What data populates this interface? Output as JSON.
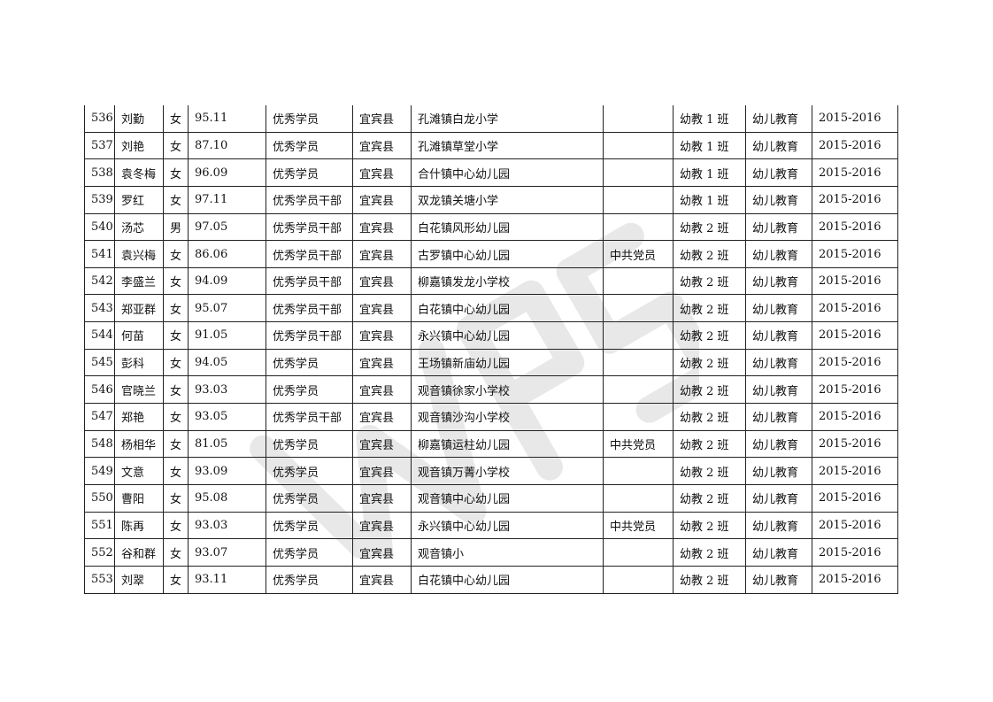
{
  "watermark": {
    "text": "WPS",
    "color": "#e6e6e6"
  },
  "table": {
    "rows": [
      [
        "536",
        "刘勤",
        "女",
        "95.11",
        "优秀学员",
        "宜宾县",
        "孔滩镇白龙小学",
        "",
        "幼教 1 班",
        "幼儿教育",
        "2015-2016"
      ],
      [
        "537",
        "刘艳",
        "女",
        "87.10",
        "优秀学员",
        "宜宾县",
        "孔滩镇草堂小学",
        "",
        "幼教 1 班",
        "幼儿教育",
        "2015-2016"
      ],
      [
        "538",
        "袁冬梅",
        "女",
        "96.09",
        "优秀学员",
        "宜宾县",
        "合什镇中心幼儿园",
        "",
        "幼教 1 班",
        "幼儿教育",
        "2015-2016"
      ],
      [
        "539",
        "罗红",
        "女",
        "97.11",
        "优秀学员干部",
        "宜宾县",
        "双龙镇关塘小学",
        "",
        "幼教 1 班",
        "幼儿教育",
        "2015-2016"
      ],
      [
        "540",
        "汤芯",
        "男",
        "97.05",
        "优秀学员干部",
        "宜宾县",
        "白花镇风形幼儿园",
        "",
        "幼教 2 班",
        "幼儿教育",
        "2015-2016"
      ],
      [
        "541",
        "袁兴梅",
        "女",
        "86.06",
        "优秀学员干部",
        "宜宾县",
        "古罗镇中心幼儿园",
        "中共党员",
        "幼教 2 班",
        "幼儿教育",
        "2015-2016"
      ],
      [
        "542",
        "李盛兰",
        "女",
        "94.09",
        "优秀学员干部",
        "宜宾县",
        "柳嘉镇发龙小学校",
        "",
        "幼教 2 班",
        "幼儿教育",
        "2015-2016"
      ],
      [
        "543",
        "郑亚群",
        "女",
        "95.07",
        "优秀学员干部",
        "宜宾县",
        "白花镇中心幼儿园",
        "",
        "幼教 2 班",
        "幼儿教育",
        "2015-2016"
      ],
      [
        "544",
        "何苗",
        "女",
        "91.05",
        "优秀学员干部",
        "宜宾县",
        "永兴镇中心幼儿园",
        "",
        "幼教 2 班",
        "幼儿教育",
        "2015-2016"
      ],
      [
        "545",
        "彭科",
        "女",
        "94.05",
        "优秀学员",
        "宜宾县",
        "王场镇新庙幼儿园",
        "",
        "幼教 2 班",
        "幼儿教育",
        "2015-2016"
      ],
      [
        "546",
        "官晓兰",
        "女",
        "93.03",
        "优秀学员",
        "宜宾县",
        "观音镇徐家小学校",
        "",
        "幼教 2 班",
        "幼儿教育",
        "2015-2016"
      ],
      [
        "547",
        "郑艳",
        "女",
        "93.05",
        "优秀学员干部",
        "宜宾县",
        "观音镇沙沟小学校",
        "",
        "幼教 2 班",
        "幼儿教育",
        "2015-2016"
      ],
      [
        "548",
        "杨相华",
        "女",
        "81.05",
        "优秀学员",
        "宜宾县",
        "柳嘉镇运柱幼儿园",
        "中共党员",
        "幼教 2 班",
        "幼儿教育",
        "2015-2016"
      ],
      [
        "549",
        "文意",
        "女",
        "93.09",
        "优秀学员",
        "宜宾县",
        "观音镇万菁小学校",
        "",
        "幼教 2 班",
        "幼儿教育",
        "2015-2016"
      ],
      [
        "550",
        "曹阳",
        "女",
        "95.08",
        "优秀学员",
        "宜宾县",
        "观音镇中心幼儿园",
        "",
        "幼教 2 班",
        "幼儿教育",
        "2015-2016"
      ],
      [
        "551",
        "陈再",
        "女",
        "93.03",
        "优秀学员",
        "宜宾县",
        "永兴镇中心幼儿园",
        "中共党员",
        "幼教 2 班",
        "幼儿教育",
        "2015-2016"
      ],
      [
        "552",
        "谷和群",
        "女",
        "93.07",
        "优秀学员",
        "宜宾县",
        "观音镇小",
        "",
        "幼教 2 班",
        "幼儿教育",
        "2015-2016"
      ],
      [
        "553",
        "刘翠",
        "女",
        "93.11",
        "优秀学员",
        "宜宾县",
        "白花镇中心幼儿园",
        "",
        "幼教 2 班",
        "幼儿教育",
        "2015-2016"
      ]
    ]
  }
}
